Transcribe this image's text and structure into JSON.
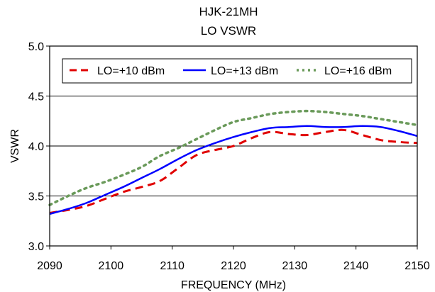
{
  "chart_data": {
    "type": "line",
    "title": "HJK-21MH",
    "subtitle": "LO VSWR",
    "xlabel": "FREQUENCY (MHz)",
    "ylabel": "VSWR",
    "xlim": [
      2090,
      2150
    ],
    "ylim": [
      3.0,
      5.0
    ],
    "x_ticks": [
      "2090",
      "2100",
      "2110",
      "2120",
      "2130",
      "2140",
      "2150"
    ],
    "y_ticks": [
      "3.0",
      "3.5",
      "4.0",
      "4.5",
      "5.0"
    ],
    "grid": "horizontal",
    "legend_position": "top",
    "series": [
      {
        "name": "LO=+10 dBm",
        "color": "#e00000",
        "style": "dashed",
        "x": [
          2090,
          2093,
          2096,
          2099,
          2102,
          2105,
          2108,
          2111,
          2114,
          2117,
          2120,
          2123,
          2126,
          2129,
          2132,
          2135,
          2138,
          2141,
          2144,
          2147,
          2150
        ],
        "y": [
          3.33,
          3.36,
          3.4,
          3.47,
          3.54,
          3.59,
          3.65,
          3.78,
          3.91,
          3.96,
          4.0,
          4.08,
          4.14,
          4.12,
          4.11,
          4.14,
          4.16,
          4.11,
          4.06,
          4.04,
          4.03
        ]
      },
      {
        "name": "LO=+13 dBm",
        "color": "#0000ff",
        "style": "solid",
        "x": [
          2090,
          2093,
          2096,
          2099,
          2102,
          2105,
          2108,
          2111,
          2114,
          2117,
          2120,
          2123,
          2126,
          2129,
          2132,
          2135,
          2138,
          2141,
          2144,
          2147,
          2150
        ],
        "y": [
          3.32,
          3.37,
          3.43,
          3.51,
          3.59,
          3.68,
          3.77,
          3.87,
          3.96,
          4.03,
          4.09,
          4.14,
          4.18,
          4.19,
          4.2,
          4.19,
          4.19,
          4.2,
          4.19,
          4.15,
          4.1
        ]
      },
      {
        "name": "LO=+16 dBm",
        "color": "#6a9a5a",
        "style": "dotted",
        "x": [
          2090,
          2093,
          2096,
          2099,
          2102,
          2105,
          2108,
          2111,
          2114,
          2117,
          2120,
          2123,
          2126,
          2129,
          2132,
          2135,
          2138,
          2141,
          2144,
          2147,
          2150
        ],
        "y": [
          3.41,
          3.5,
          3.58,
          3.64,
          3.71,
          3.79,
          3.9,
          3.98,
          4.07,
          4.16,
          4.24,
          4.28,
          4.32,
          4.34,
          4.35,
          4.34,
          4.32,
          4.3,
          4.27,
          4.24,
          4.21
        ]
      }
    ]
  }
}
